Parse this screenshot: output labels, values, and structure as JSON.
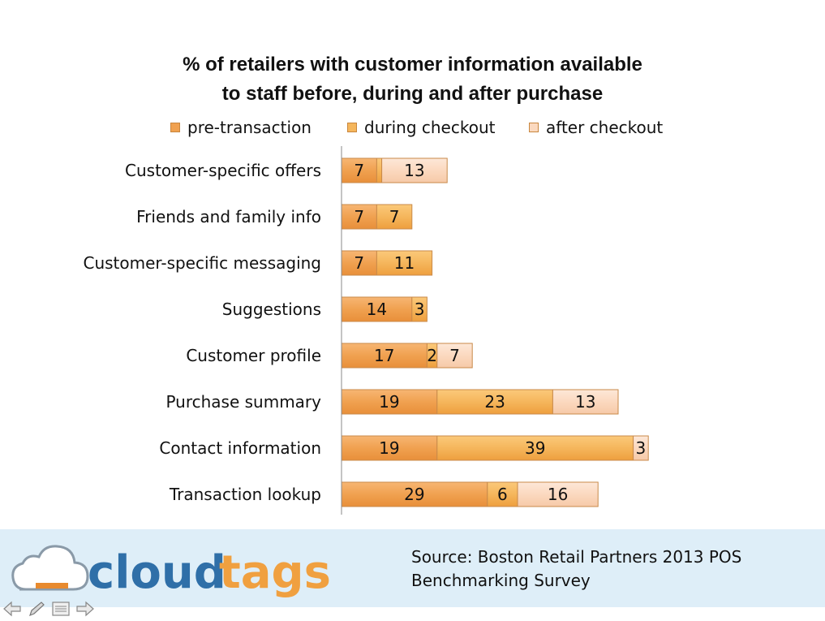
{
  "chart_data": {
    "type": "bar",
    "orientation": "horizontal",
    "stacked": true,
    "title_lines": [
      "% of retailers with customer information available",
      "to staff  before, during and after purchase"
    ],
    "categories": [
      "Customer-specific offers",
      "Friends and family info",
      "Customer-specific messaging",
      "Suggestions",
      "Customer profile",
      "Purchase summary",
      "Contact information",
      "Transaction lookup"
    ],
    "series": [
      {
        "name": "pre-transaction",
        "values": [
          7,
          7,
          7,
          14,
          17,
          19,
          19,
          29
        ],
        "color": "#f0a150"
      },
      {
        "name": "during checkout",
        "values": [
          1,
          7,
          11,
          3,
          2,
          23,
          39,
          6
        ],
        "color": "#f5b65c"
      },
      {
        "name": "after checkout",
        "values": [
          13,
          0,
          0,
          0,
          7,
          13,
          3,
          16
        ],
        "color": "#fbd9bf"
      }
    ],
    "data_labels": [
      [
        "7",
        "",
        "13"
      ],
      [
        "7",
        "7",
        ""
      ],
      [
        "7",
        "11",
        ""
      ],
      [
        "14",
        "3",
        ""
      ],
      [
        "17",
        "2",
        "7"
      ],
      [
        "19",
        "23",
        "13"
      ],
      [
        "19",
        "39",
        "3"
      ],
      [
        "29",
        "6",
        "16"
      ]
    ],
    "xlim": [
      0,
      100
    ],
    "legend_position": "top",
    "grid": false
  },
  "footer": {
    "logo_text_1": "cloud",
    "logo_text_2": "tags",
    "source_text": "Source: Boston Retail Partners 2013 POS Benchmarking Survey"
  },
  "colors": {
    "footer_bg": "#deeef8",
    "logo_blue": "#2f6fa8",
    "logo_orange": "#f0a040"
  },
  "nav_icons": [
    "arrow-left-icon",
    "pen-icon",
    "menu-icon",
    "arrow-right-icon"
  ]
}
